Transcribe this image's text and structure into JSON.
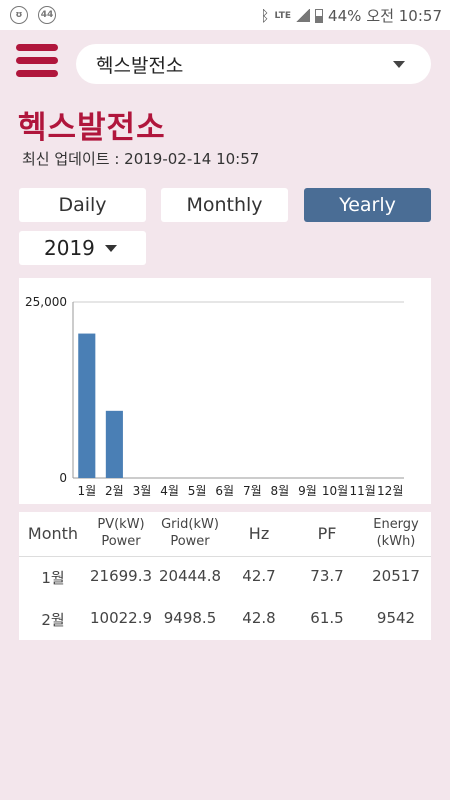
{
  "status_bar": {
    "left_badge": "44",
    "network": "LTE",
    "battery": "44%",
    "time": "오전 10:57"
  },
  "header": {
    "site_selected": "헥스발전소"
  },
  "page": {
    "title": "헥스발전소",
    "updated": "최신 업데이트 : 2019-02-14 10:57"
  },
  "tabs": [
    {
      "label": "Daily",
      "active": false
    },
    {
      "label": "Monthly",
      "active": false
    },
    {
      "label": "Yearly",
      "active": true
    }
  ],
  "year_select": {
    "value": "2019"
  },
  "chart_data": {
    "type": "bar",
    "categories": [
      "1월",
      "2월",
      "3월",
      "4월",
      "5월",
      "6월",
      "7월",
      "8월",
      "9월",
      "10월",
      "11월",
      "12월"
    ],
    "values": [
      20517,
      9542,
      0,
      0,
      0,
      0,
      0,
      0,
      0,
      0,
      0,
      0
    ],
    "ylim": [
      0,
      25000
    ],
    "ytick_labels": [
      "0",
      "25,000"
    ],
    "bar_color": "#4a7fb5"
  },
  "table": {
    "headers": [
      {
        "line1": "Month",
        "line2": ""
      },
      {
        "line1": "PV(kW)",
        "line2": "Power"
      },
      {
        "line1": "Grid(kW)",
        "line2": "Power"
      },
      {
        "line1": "Hz",
        "line2": ""
      },
      {
        "line1": "PF",
        "line2": ""
      },
      {
        "line1": "Energy",
        "line2": "(kWh)"
      }
    ],
    "rows": [
      [
        "1월",
        "21699.3",
        "20444.8",
        "42.7",
        "73.7",
        "20517"
      ],
      [
        "2월",
        "10022.9",
        "9498.5",
        "42.8",
        "61.5",
        "9542"
      ]
    ]
  },
  "colors": {
    "accent": "#b0163c",
    "active_tab": "#4a6d95",
    "background": "#f3e6ec"
  }
}
